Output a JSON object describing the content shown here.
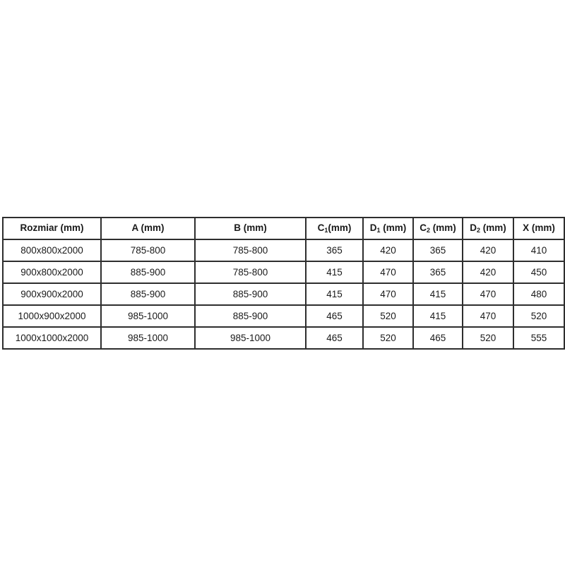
{
  "page": {
    "background_color": "#ffffff",
    "border_color": "#2e2e2e",
    "text_color": "#1a1a1a"
  },
  "chart_data": {
    "type": "table",
    "title": "Shower enclosure dimensions table (Polish: Rozmiar = size)",
    "headers": [
      {
        "pre": "Rozmiar (mm)",
        "sub": "",
        "post": ""
      },
      {
        "pre": "A (mm)",
        "sub": "",
        "post": ""
      },
      {
        "pre": "B (mm)",
        "sub": "",
        "post": ""
      },
      {
        "pre": "C",
        "sub": "1",
        "post": "(mm)"
      },
      {
        "pre": "D",
        "sub": "1",
        "post": " (mm)"
      },
      {
        "pre": "C",
        "sub": "2",
        "post": " (mm)"
      },
      {
        "pre": "D",
        "sub": "2",
        "post": " (mm)"
      },
      {
        "pre": "X (mm)",
        "sub": "",
        "post": ""
      }
    ],
    "rows": [
      [
        "800x800x2000",
        "785-800",
        "785-800",
        "365",
        "420",
        "365",
        "420",
        "410"
      ],
      [
        "900x800x2000",
        "885-900",
        "785-800",
        "415",
        "470",
        "365",
        "420",
        "450"
      ],
      [
        "900x900x2000",
        "885-900",
        "885-900",
        "415",
        "470",
        "415",
        "470",
        "480"
      ],
      [
        "1000x900x2000",
        "985-1000",
        "885-900",
        "465",
        "520",
        "415",
        "470",
        "520"
      ],
      [
        "1000x1000x2000",
        "985-1000",
        "985-1000",
        "465",
        "520",
        "465",
        "520",
        "555"
      ]
    ]
  }
}
